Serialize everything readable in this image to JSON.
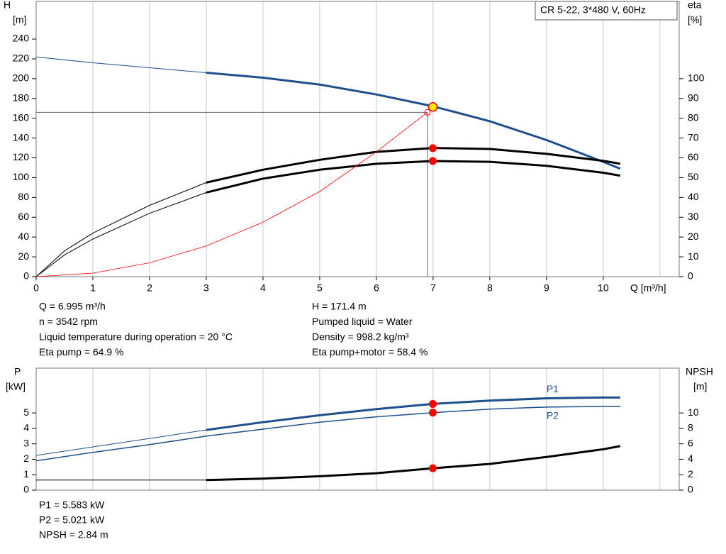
{
  "chart_data": [
    {
      "type": "line",
      "title": "CR 5-22, 3*480 V, 60Hz",
      "xlabel": "Q [m³/h]",
      "ylabel": [
        "H",
        "[m]"
      ],
      "y2label": [
        "eta",
        "[%]"
      ],
      "xlim": [
        0,
        11.34
      ],
      "xticks": [
        0,
        1,
        2,
        3,
        4,
        5,
        6,
        7,
        8,
        9,
        10
      ],
      "xgrid": [
        0,
        1,
        2,
        3,
        4,
        5,
        6,
        7,
        8,
        9,
        10,
        11
      ],
      "ylim": [
        0,
        278
      ],
      "yticks": [
        0,
        20,
        40,
        60,
        80,
        100,
        120,
        140,
        160,
        180,
        200,
        220,
        240
      ],
      "y2lim": [
        0,
        139
      ],
      "y2ticks": [
        0,
        10,
        20,
        30,
        40,
        50,
        60,
        70,
        80,
        90,
        100
      ],
      "series": [
        {
          "color": "#1c4f8c",
          "thick_from": 3,
          "x": [
            0,
            1,
            2,
            3,
            4,
            5,
            6,
            7,
            8,
            9,
            10,
            10.3
          ],
          "values": [
            222,
            216,
            211,
            206,
            201,
            194,
            184,
            172,
            157,
            138,
            116,
            109
          ]
        },
        {
          "color": "#000000",
          "axis": "y2",
          "thick_from": 3,
          "x": [
            0,
            0.5,
            1,
            2,
            3,
            4,
            5,
            6,
            7,
            8,
            9,
            10,
            10.3
          ],
          "values": [
            0,
            13,
            22,
            36,
            47.5,
            54,
            59,
            63,
            65,
            64.5,
            62,
            58.5,
            57
          ]
        },
        {
          "color": "#000000",
          "axis": "y2",
          "thick_from": 3,
          "x": [
            0,
            0.5,
            1,
            2,
            3,
            4,
            5,
            6,
            7,
            8,
            9,
            10,
            10.3
          ],
          "values": [
            0,
            11,
            19,
            32,
            42.5,
            49.5,
            54,
            57,
            58.4,
            58,
            56,
            52.5,
            51
          ]
        },
        {
          "color": "#ff0000",
          "x": [
            0,
            1,
            2,
            3,
            4,
            5,
            6,
            6.9
          ],
          "values": [
            0,
            3.6,
            14,
            31,
            55,
            86,
            126,
            166
          ]
        }
      ],
      "reference_point": {
        "x": 6.9,
        "y": 166
      },
      "operating_point": {
        "x": 6.995,
        "values": [
          171.4,
          64.9,
          58.4
        ]
      }
    },
    {
      "type": "line",
      "ylabel": [
        "P",
        "[kW]"
      ],
      "y2label": [
        "NPSH",
        "[m]"
      ],
      "xlim": [
        0,
        11.34
      ],
      "xgrid": [
        0,
        1,
        2,
        3,
        4,
        5,
        6,
        7,
        8,
        9,
        10,
        11
      ],
      "ylim": [
        0,
        7.9
      ],
      "yticks": [
        0,
        1,
        2,
        3,
        4,
        5
      ],
      "y2lim": [
        0,
        15.8
      ],
      "y2ticks": [
        0,
        2,
        4,
        6,
        8,
        10
      ],
      "series": [
        {
          "name": "P1",
          "color": "#1c4f8c",
          "thick_from": 3,
          "x": [
            0,
            1,
            2,
            3,
            4,
            5,
            6,
            7,
            8,
            9,
            10,
            10.3
          ],
          "values": [
            2.25,
            2.8,
            3.35,
            3.9,
            4.4,
            4.85,
            5.25,
            5.583,
            5.8,
            5.95,
            6.0,
            6.0
          ]
        },
        {
          "name": "P2",
          "color": "#1c4f8c",
          "x": [
            0,
            1,
            2,
            3,
            4,
            5,
            6,
            7,
            8,
            9,
            10,
            10.3
          ],
          "values": [
            1.9,
            2.45,
            2.95,
            3.5,
            3.95,
            4.4,
            4.75,
            5.021,
            5.25,
            5.38,
            5.42,
            5.42
          ]
        },
        {
          "color": "#000000",
          "axis": "y2",
          "thick_from": 3,
          "x": [
            0,
            3,
            4,
            5,
            6,
            7,
            8,
            9,
            10,
            10.3
          ],
          "values": [
            1.3,
            1.3,
            1.5,
            1.8,
            2.2,
            2.84,
            3.4,
            4.3,
            5.3,
            5.7
          ]
        }
      ],
      "operating_point": {
        "x": 6.995,
        "values": [
          5.583,
          5.021,
          2.84
        ]
      }
    }
  ],
  "operating_info": {
    "left": [
      "Q = 6.995 m³/h",
      "n = 3542 rpm",
      "Liquid temperature during operation = 20 °C",
      "Eta pump = 64.9 %"
    ],
    "right": [
      "H = 171.4 m",
      "Pumped liquid = Water",
      "Density = 998.2 kg/m³",
      "Eta pump+motor = 58.4 %"
    ]
  },
  "power_info": [
    "P1 = 5.583 kW",
    "P2 = 5.021 kW",
    "NPSH = 2.84 m"
  ]
}
